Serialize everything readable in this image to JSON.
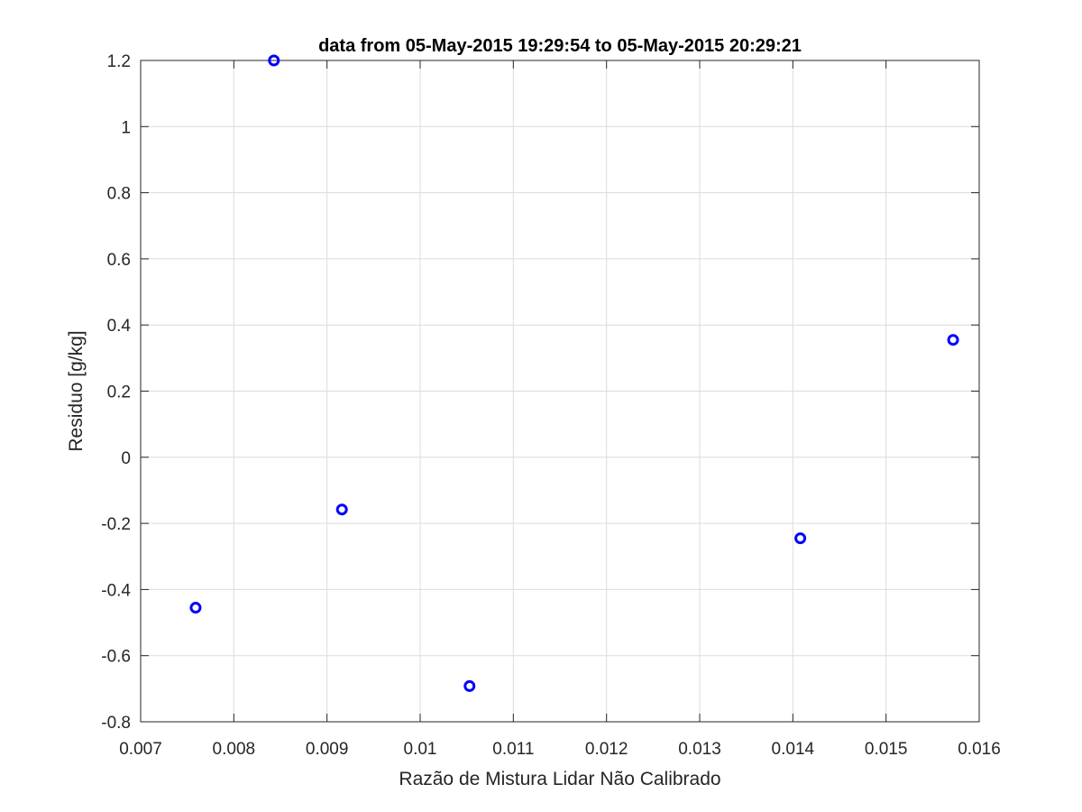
{
  "chart_data": {
    "type": "scatter",
    "title": "data from 05-May-2015 19:29:54 to 05-May-2015 20:29:21",
    "xlabel": "Razão de Mistura Lidar Não Calibrado",
    "ylabel": "Residuo [g/kg]",
    "xlim": [
      0.007,
      0.016
    ],
    "ylim": [
      -0.8,
      1.2
    ],
    "xticks": [
      "0.007",
      "0.008",
      "0.009",
      "0.01",
      "0.011",
      "0.012",
      "0.013",
      "0.014",
      "0.015",
      "0.016"
    ],
    "yticks": [
      "-0.8",
      "-0.6",
      "-0.4",
      "-0.2",
      "0",
      "0.2",
      "0.4",
      "0.6",
      "0.8",
      "1",
      "1.2"
    ],
    "grid": true,
    "marker": "circle-open",
    "marker_color": "#0000ff",
    "series": [
      {
        "x": [
          0.00759,
          0.00843,
          0.00916,
          0.01053,
          0.01408,
          0.01572
        ],
        "y": [
          -0.455,
          1.2,
          -0.158,
          -0.692,
          -0.245,
          0.355
        ]
      }
    ]
  }
}
